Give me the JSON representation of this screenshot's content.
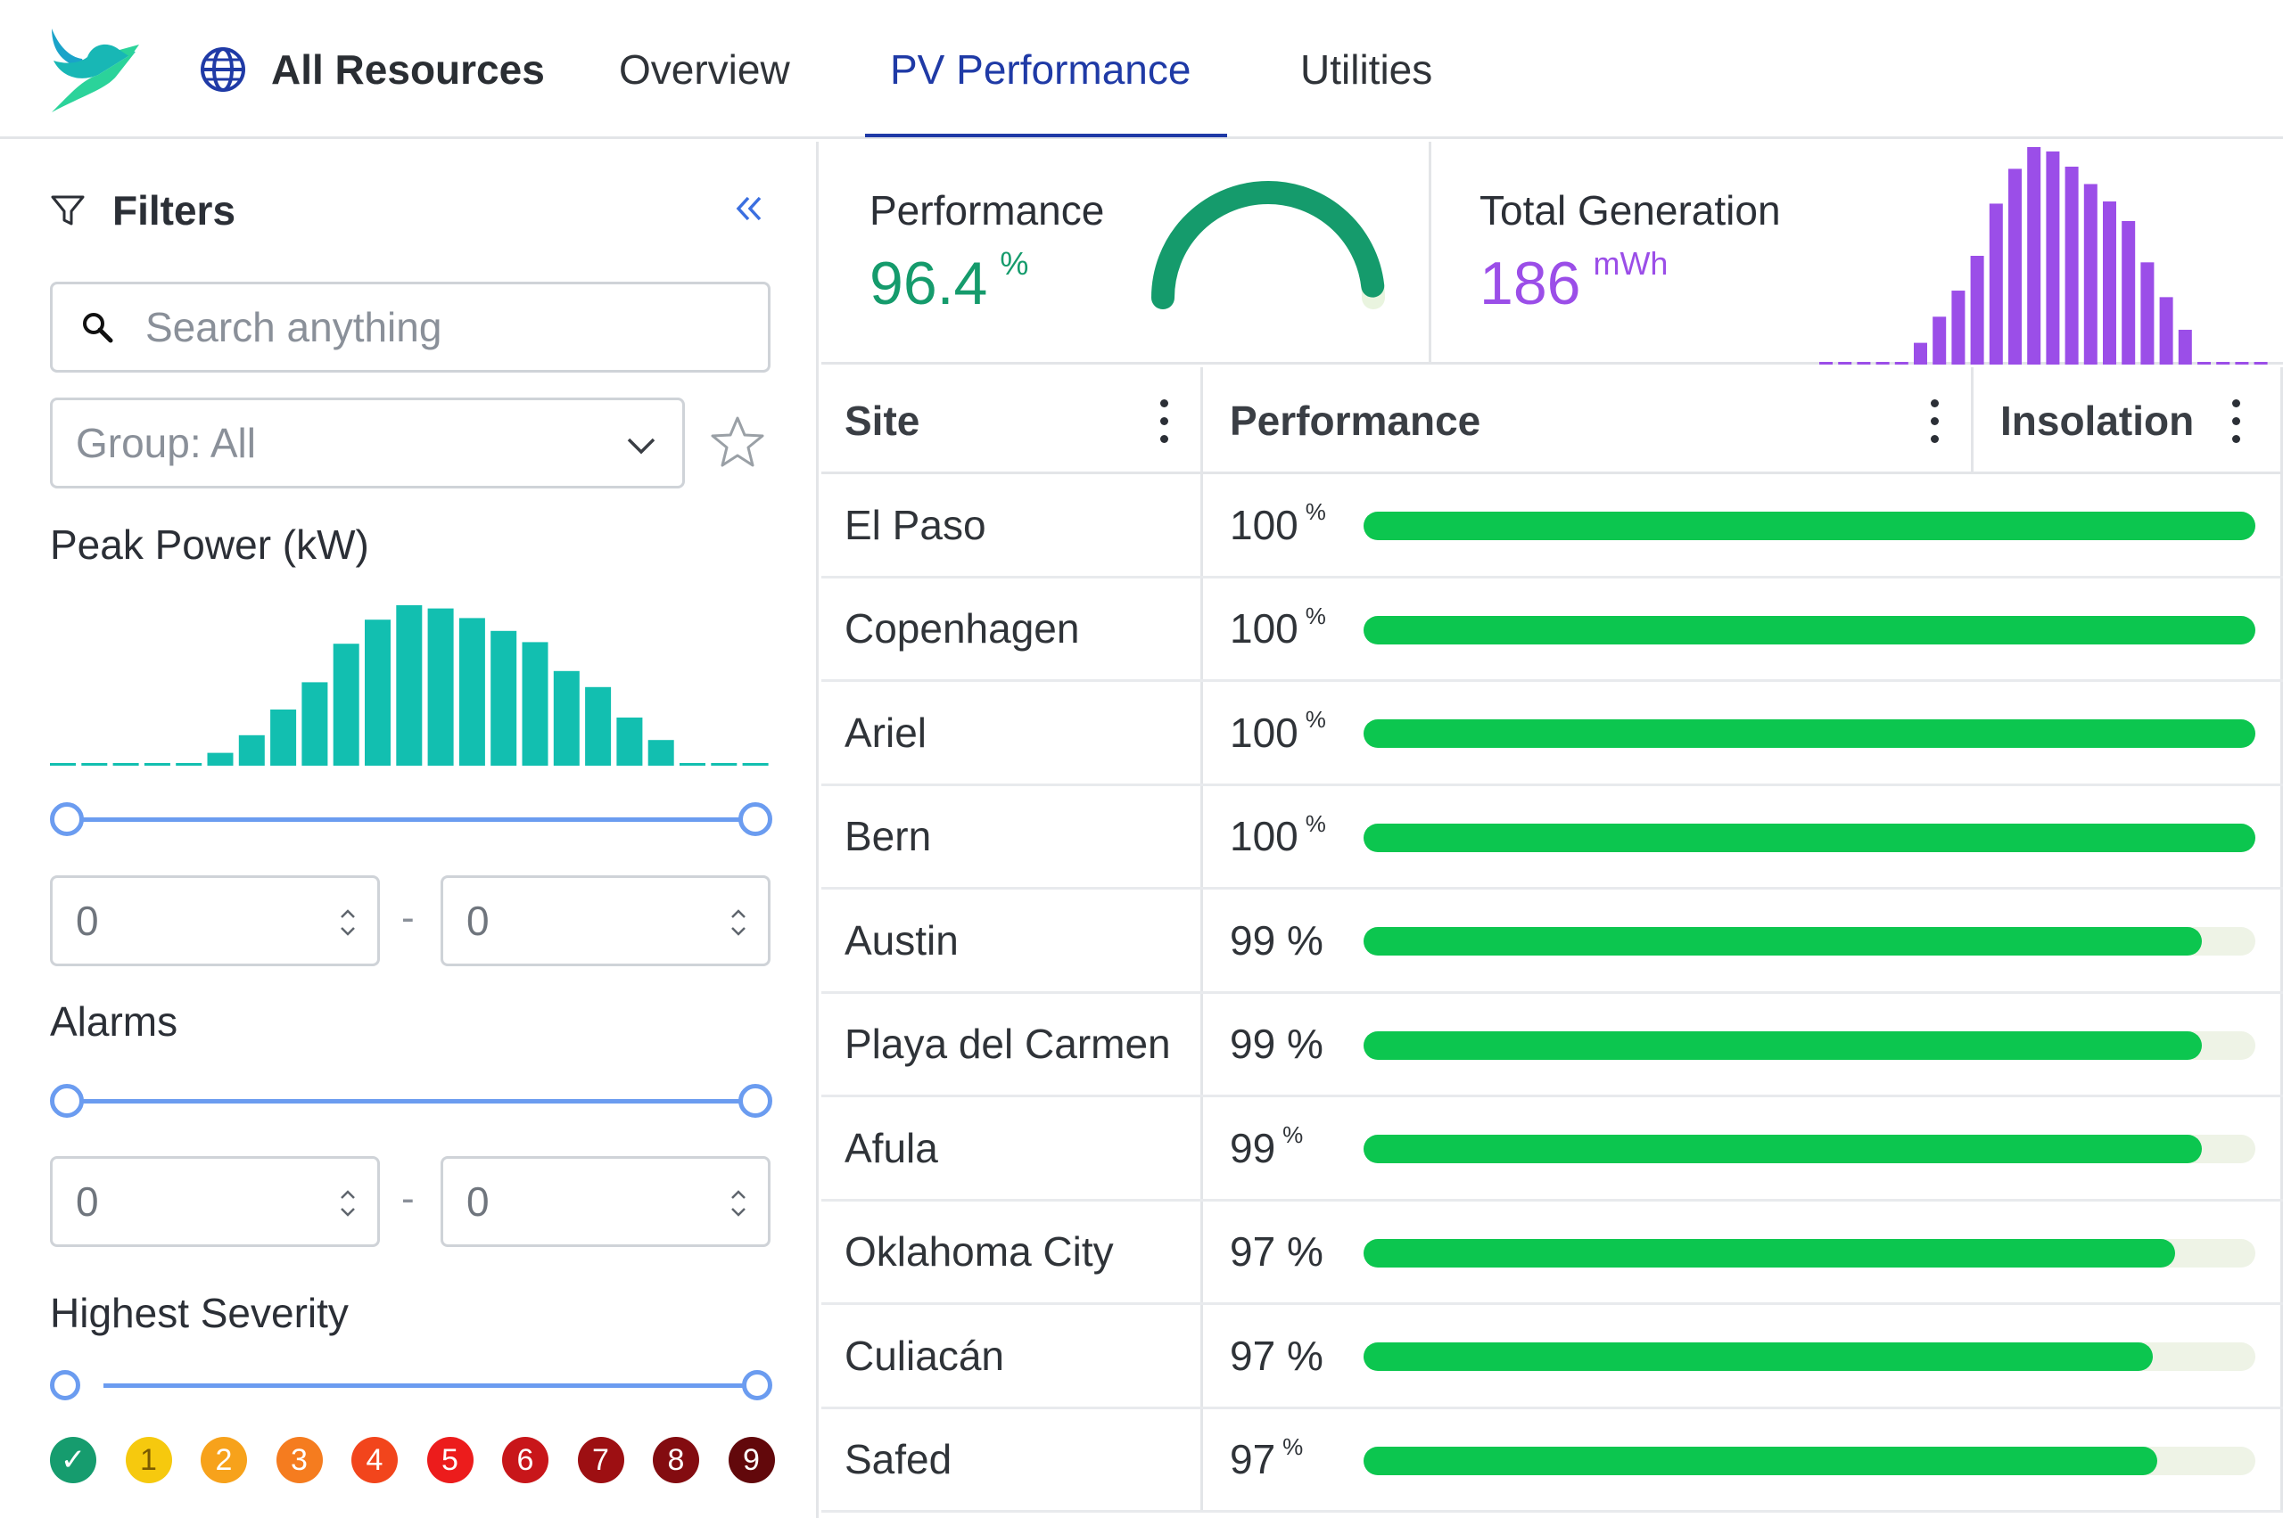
{
  "nav": {
    "all_resources": "All Resources",
    "tabs": [
      {
        "label": "Overview"
      },
      {
        "label": "PV Performance",
        "active": true
      },
      {
        "label": "Utilities"
      }
    ]
  },
  "sidebar": {
    "title": "Filters",
    "collapse_label": "«",
    "search": {
      "placeholder": "Search anything",
      "value": ""
    },
    "group": {
      "label": "Group: All"
    },
    "peak_power": {
      "label": "Peak Power (kW)",
      "histogram": [
        0,
        0,
        0,
        0,
        0,
        8,
        19,
        35,
        52,
        76,
        91,
        100,
        98,
        92,
        84,
        77,
        59,
        49,
        30,
        16,
        0,
        0,
        0
      ],
      "min": "0",
      "max": "0"
    },
    "alarms": {
      "label": "Alarms",
      "min": "0",
      "max": "0"
    },
    "severity": {
      "label": "Highest Severity",
      "levels": [
        {
          "label": "✓",
          "color": "#169c6e"
        },
        {
          "label": "1",
          "color": "#f6c90e"
        },
        {
          "label": "2",
          "color": "#f7a21b"
        },
        {
          "label": "3",
          "color": "#f57c1f"
        },
        {
          "label": "4",
          "color": "#f2451c"
        },
        {
          "label": "5",
          "color": "#ec1c1c"
        },
        {
          "label": "6",
          "color": "#c8161a"
        },
        {
          "label": "7",
          "color": "#9d0f12"
        },
        {
          "label": "8",
          "color": "#830c10"
        },
        {
          "label": "9",
          "color": "#62080b"
        }
      ]
    }
  },
  "kpi": {
    "performance": {
      "title": "Performance",
      "value": "96.4",
      "unit": "%",
      "fraction": 0.964
    },
    "generation": {
      "title": "Total Generation",
      "value": "186",
      "unit": "mWh",
      "histogram": [
        0,
        0,
        0,
        0,
        0,
        10,
        22,
        34,
        50,
        74,
        90,
        100,
        98,
        91,
        83,
        75,
        66,
        47,
        31,
        16,
        0,
        0,
        0,
        0
      ]
    }
  },
  "table": {
    "columns": [
      "Site",
      "Performance",
      "Insolation"
    ],
    "rows": [
      {
        "site": "El Paso",
        "pct": "100",
        "unit": "%",
        "value": 100
      },
      {
        "site": "Copenhagen",
        "pct": "100",
        "unit": "%",
        "value": 100
      },
      {
        "site": "Ariel",
        "pct": "100",
        "unit": "%",
        "value": 100
      },
      {
        "site": "Bern",
        "pct": "100",
        "unit": "%",
        "value": 100
      },
      {
        "site": "Austin",
        "pct": "99 %",
        "unit": "",
        "value": 94
      },
      {
        "site": "Playa del Carmen",
        "pct": "99 %",
        "unit": "",
        "value": 94
      },
      {
        "site": "Afula",
        "pct": "99",
        "unit": "%",
        "value": 94
      },
      {
        "site": "Oklahoma City",
        "pct": "97 %",
        "unit": "",
        "value": 91
      },
      {
        "site": "Culiacán",
        "pct": "97 %",
        "unit": "",
        "value": 88.5
      },
      {
        "site": "Safed",
        "pct": "97",
        "unit": "%",
        "value": 89
      }
    ]
  },
  "colors": {
    "accent": "#1f3aa6",
    "teal": "#12bfb0",
    "green": "#0cc64f",
    "purple": "#9b4ee8",
    "slider": "#6b9cf0"
  }
}
